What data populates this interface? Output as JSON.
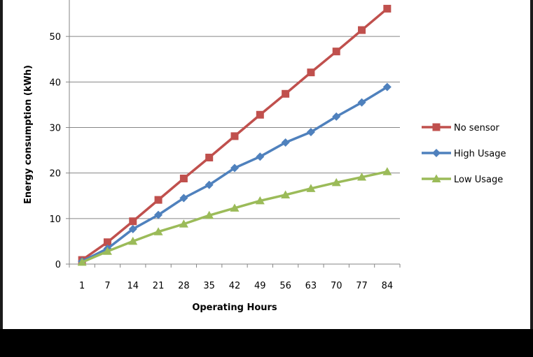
{
  "chart_data": {
    "type": "line",
    "title": "",
    "xlabel": "Operating Hours",
    "ylabel": "Energy consumption (kWh)",
    "categories": [
      "1",
      "7",
      "14",
      "21",
      "28",
      "35",
      "42",
      "49",
      "56",
      "63",
      "70",
      "77",
      "84"
    ],
    "ylim": [
      0,
      60
    ],
    "yticks": [
      0,
      10,
      20,
      30,
      40,
      50
    ],
    "grid": true,
    "legend": "right",
    "series": [
      {
        "name": "No sensor",
        "color": "#c0504d",
        "marker": "square",
        "values": [
          0.9,
          4.8,
          9.4,
          14.1,
          18.8,
          23.4,
          28.1,
          32.8,
          37.4,
          42.1,
          46.7,
          51.4,
          56.1
        ]
      },
      {
        "name": "High Usage",
        "color": "#4f81bd",
        "marker": "diamond",
        "values": [
          0.6,
          3.4,
          7.7,
          10.8,
          14.5,
          17.4,
          21.1,
          23.6,
          26.7,
          29.0,
          32.4,
          35.5,
          38.9
        ]
      },
      {
        "name": "Low Usage",
        "color": "#9bbb59",
        "marker": "triangle",
        "values": [
          0.4,
          2.8,
          5.0,
          7.1,
          8.8,
          10.7,
          12.3,
          13.9,
          15.2,
          16.6,
          17.9,
          19.1,
          20.3
        ]
      }
    ]
  }
}
